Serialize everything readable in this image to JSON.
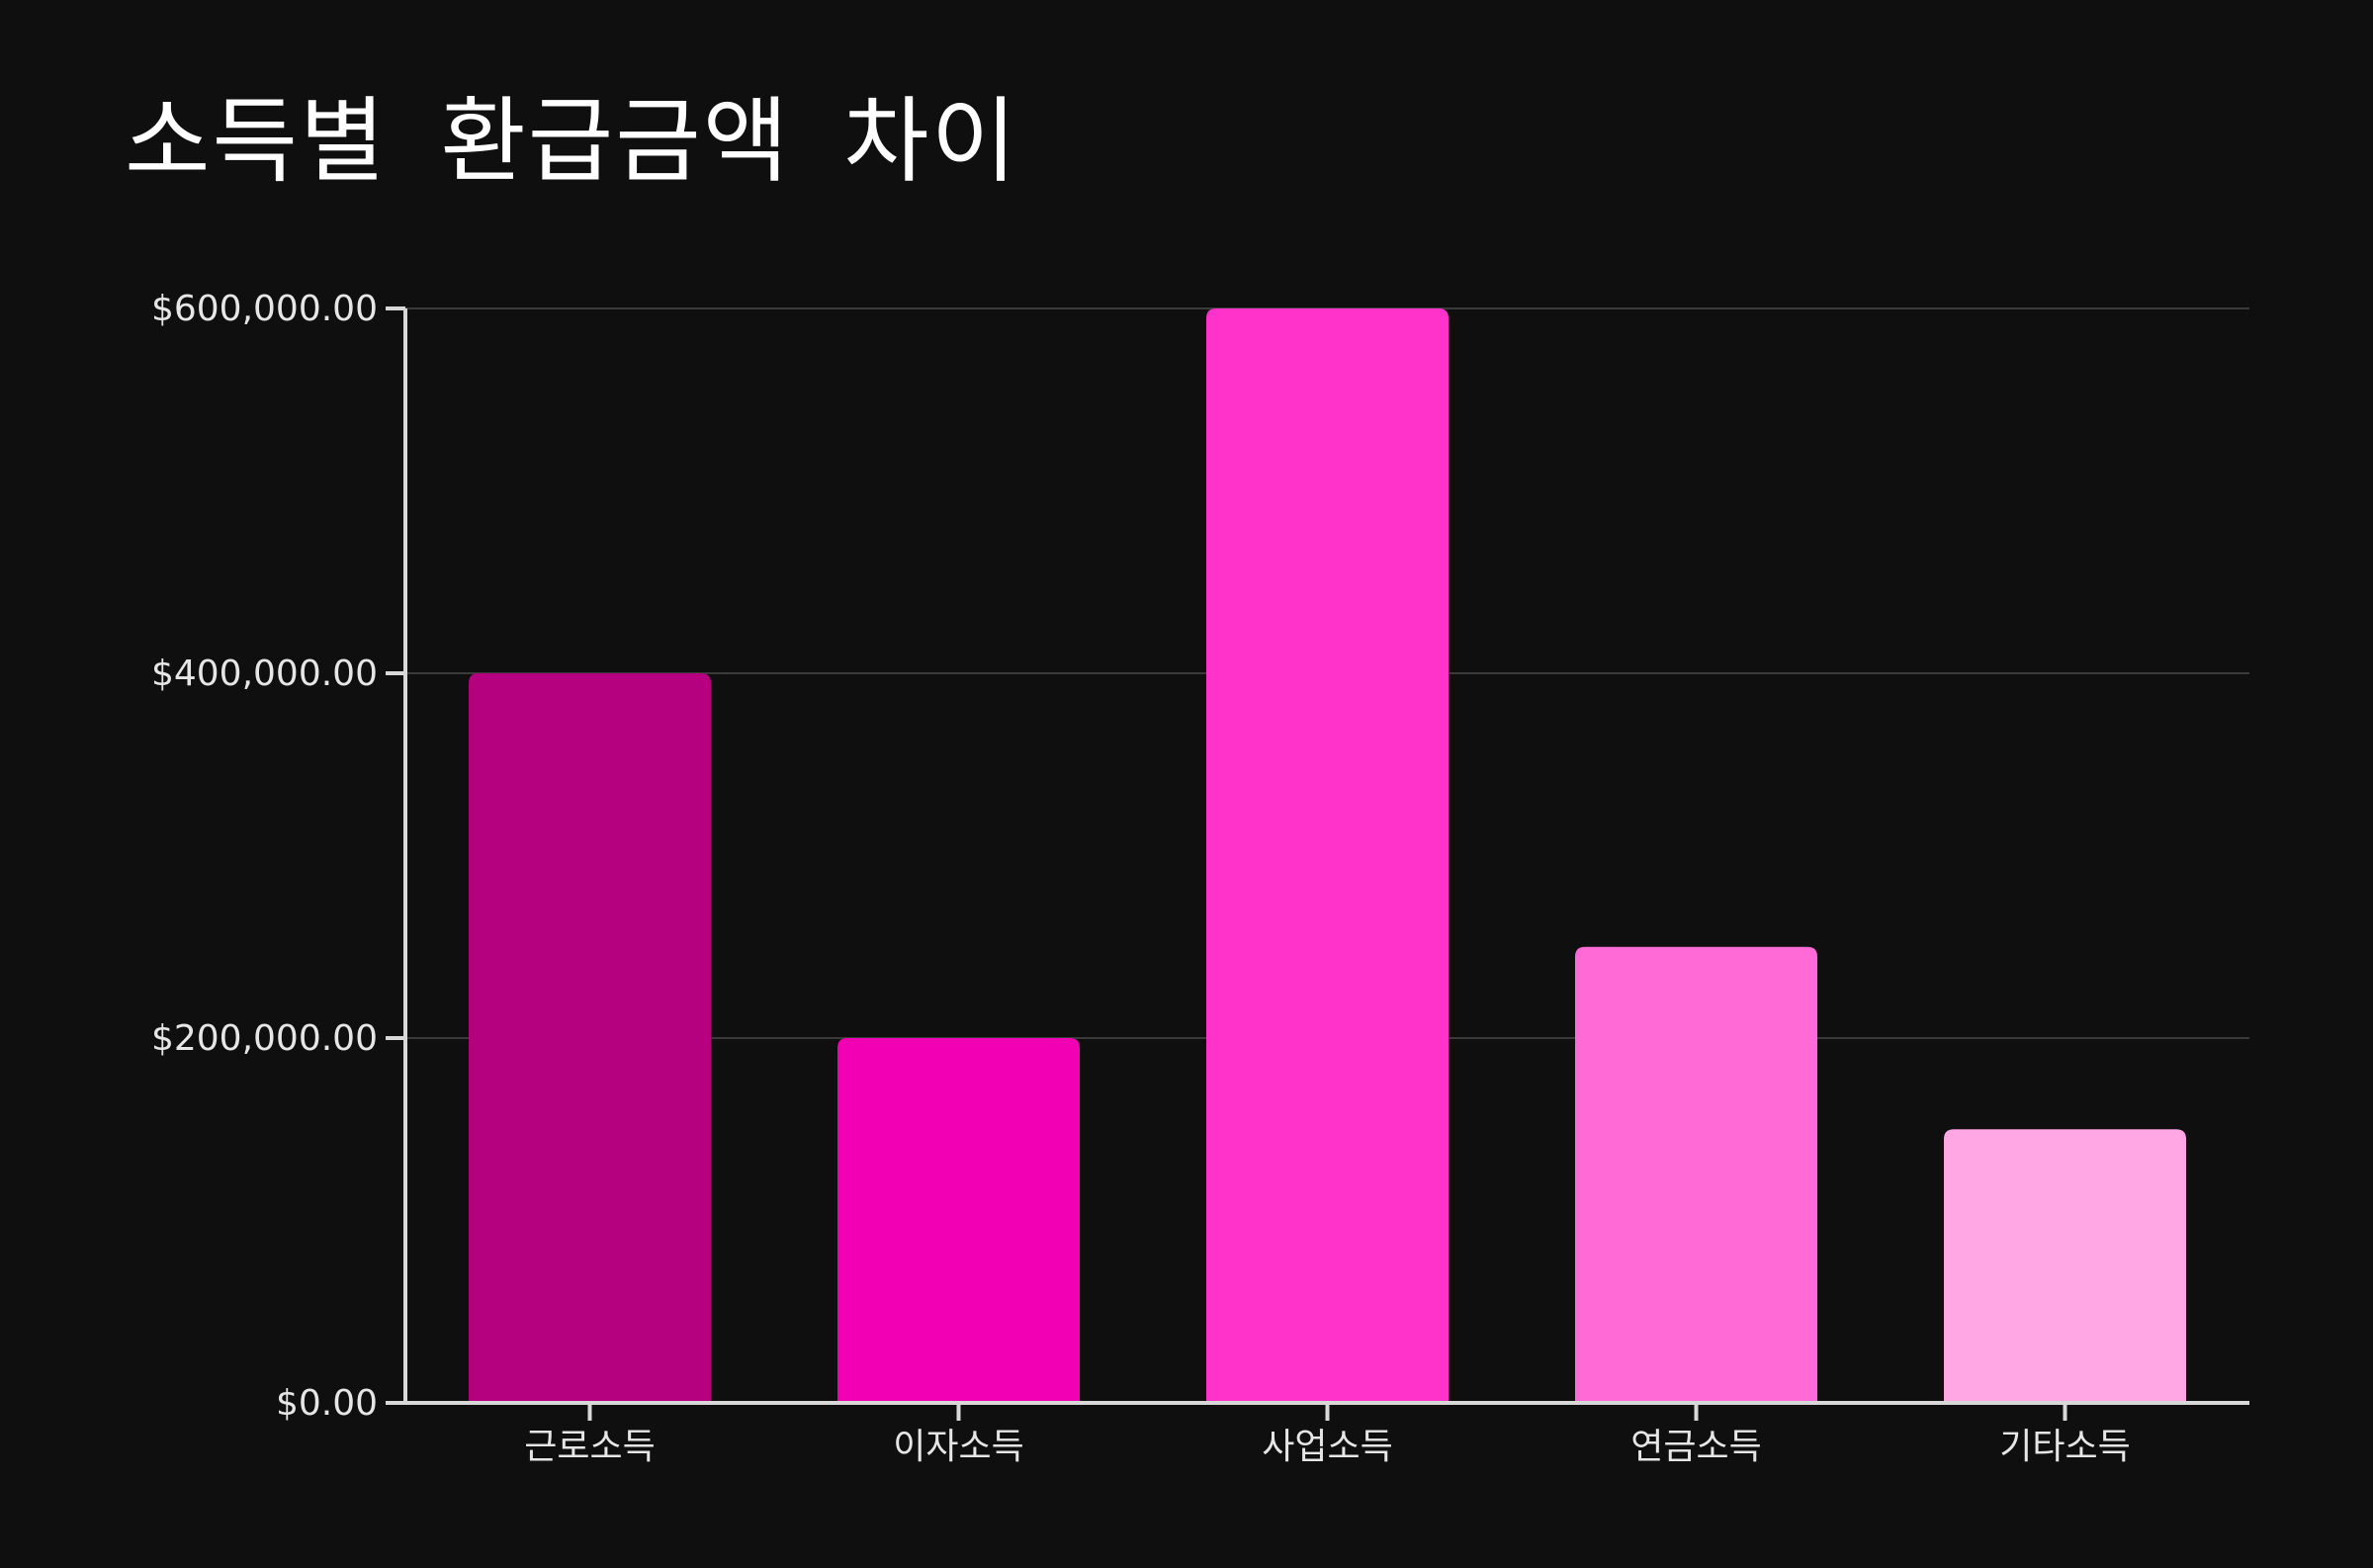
{
  "chart_data": {
    "type": "bar",
    "title": "소득별 환급금액 차이",
    "xlabel": "",
    "ylabel": "",
    "categories": [
      "근로소득",
      "이자소득",
      "사업소득",
      "연금소득",
      "기타소득"
    ],
    "values": [
      400000,
      200000,
      600000,
      250000,
      150000
    ],
    "colors": [
      "#b5007f",
      "#f200b4",
      "#ff33c9",
      "#ff6ad6",
      "#ffa6e4"
    ],
    "ylim": [
      0,
      600000
    ],
    "yticks": [
      0,
      200000,
      400000,
      600000
    ],
    "ytick_labels": [
      "$0.00",
      "$200,000.00",
      "$400,000.00",
      "$600,000.00"
    ],
    "grid": true,
    "legend": "none"
  },
  "theme": {
    "background": "#0f0f10",
    "axis_color": "#d8d8d8",
    "grid_color": "#3a3a3a",
    "text_color": "#e6e6e6"
  }
}
